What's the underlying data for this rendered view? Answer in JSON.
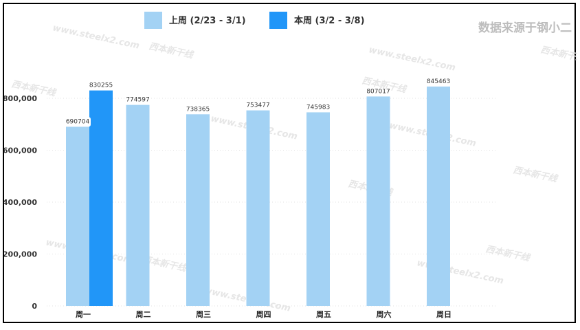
{
  "source_note": "数据来源于钢小二",
  "watermark_url": "www.steelx2.com",
  "watermark_brand": "西本新干线",
  "colors": {
    "last_week": "#a3d2f4",
    "this_week": "#2196f8"
  },
  "chart_data": {
    "type": "bar",
    "categories": [
      "周一",
      "周二",
      "周三",
      "周四",
      "周五",
      "周六",
      "周日"
    ],
    "series": [
      {
        "name": "上周 (2/23 - 3/1)",
        "values": [
          690704,
          774597,
          738365,
          753477,
          745983,
          807017,
          845463
        ]
      },
      {
        "name": "本周 (3/2 - 3/8)",
        "values": [
          830255,
          null,
          null,
          null,
          null,
          null,
          null
        ]
      }
    ],
    "yticks": [
      "0",
      "200,000",
      "400,000",
      "600,000",
      "800,000"
    ],
    "ytick_values": [
      0,
      200000,
      400000,
      600000,
      800000
    ],
    "ylim": [
      0,
      880000
    ],
    "grid": true,
    "legend_position": "top"
  }
}
